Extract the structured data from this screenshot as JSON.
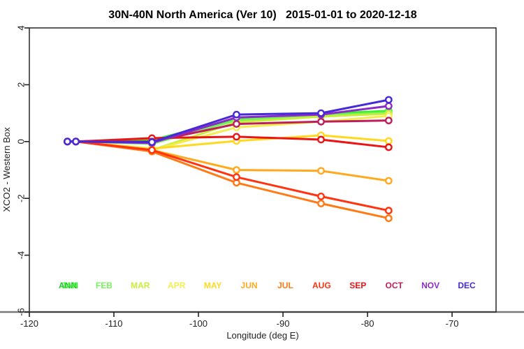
{
  "chart_data": {
    "type": "line",
    "title": "30N-40N North America (Ver 10)   2015-01-01 to 2020-12-18",
    "xlabel": "Longitude (deg E)",
    "ylabel": "XCO2 - Western Box",
    "xlim": [
      -120,
      -64.8
    ],
    "ylim": [
      -6,
      4
    ],
    "grid": false,
    "marker": "open-circle",
    "xticks": [
      {
        "v": -120,
        "label": "-120"
      },
      {
        "v": -110,
        "label": "-110"
      },
      {
        "v": -100,
        "label": "-100"
      },
      {
        "v": -90,
        "label": "-90"
      },
      {
        "v": -80,
        "label": "-80"
      },
      {
        "v": -70,
        "label": "-70"
      }
    ],
    "yticks": [
      {
        "v": -6,
        "label": "-6"
      },
      {
        "v": -4,
        "label": "-4"
      },
      {
        "v": -2,
        "label": "-2"
      },
      {
        "v": 0,
        "label": "0"
      },
      {
        "v": 2,
        "label": "2"
      },
      {
        "v": 4,
        "label": "4"
      }
    ],
    "x": [
      -115.5,
      -114.5,
      -105.5,
      -95.5,
      -85.5,
      -77.5
    ],
    "series": [
      {
        "name": "ANN",
        "color": "#1FC42F",
        "values": [
          0,
          0,
          -0.02,
          0.8,
          0.95,
          1.05
        ]
      },
      {
        "name": "JAN",
        "color": "#3BEF2B",
        "values": [
          0,
          0,
          0.05,
          0.82,
          0.98,
          1.08
        ]
      },
      {
        "name": "FEB",
        "color": "#77F25C",
        "values": [
          0,
          0,
          -0.08,
          0.75,
          0.92,
          1.02
        ]
      },
      {
        "name": "MAR",
        "color": "#C8EE3C",
        "values": [
          0,
          0,
          -0.3,
          0.68,
          0.88,
          0.98
        ]
      },
      {
        "name": "APR",
        "color": "#F2EE4E",
        "values": [
          0,
          0,
          -0.3,
          0.5,
          0.7,
          0.9
        ]
      },
      {
        "name": "MAY",
        "color": "#FFD91E",
        "values": [
          0,
          0,
          -0.25,
          0.02,
          0.22,
          0.02
        ]
      },
      {
        "name": "JUN",
        "color": "#FFA91E",
        "values": [
          0,
          0,
          -0.3,
          -1.0,
          -1.03,
          -1.38
        ]
      },
      {
        "name": "JUL",
        "color": "#FF7A14",
        "values": [
          0,
          0,
          -0.35,
          -1.45,
          -2.18,
          -2.7
        ]
      },
      {
        "name": "AUG",
        "color": "#FF330F",
        "values": [
          0,
          0,
          -0.3,
          -1.25,
          -1.93,
          -2.43
        ]
      },
      {
        "name": "SEP",
        "color": "#EA1515",
        "values": [
          0,
          0,
          0.12,
          0.17,
          0.07,
          -0.2
        ]
      },
      {
        "name": "OCT",
        "color": "#BE1E5A",
        "values": [
          0,
          0,
          0.0,
          0.62,
          0.7,
          0.74
        ]
      },
      {
        "name": "NOV",
        "color": "#8C2BC9",
        "values": [
          0,
          0,
          -0.05,
          0.85,
          0.95,
          1.25
        ]
      },
      {
        "name": "DEC",
        "color": "#4629D8",
        "values": [
          0,
          0,
          -0.02,
          0.95,
          1.0,
          1.47
        ]
      }
    ],
    "legend": {
      "position": "inside-bottom",
      "items": [
        {
          "label": "ANN",
          "color": "#1FC42F",
          "slot": 0,
          "dx": 0
        },
        {
          "label": "JAN",
          "color": "#3BEF2B",
          "slot": 0,
          "dx": 3
        },
        {
          "label": "FEB",
          "color": "#77F25C",
          "slot": 1,
          "dx": 0
        },
        {
          "label": "MAR",
          "color": "#C8EE3C",
          "slot": 2,
          "dx": 0
        },
        {
          "label": "APR",
          "color": "#F2EE4E",
          "slot": 3,
          "dx": 0
        },
        {
          "label": "MAY",
          "color": "#FFD91E",
          "slot": 4,
          "dx": 0
        },
        {
          "label": "JUN",
          "color": "#FFA91E",
          "slot": 5,
          "dx": 0
        },
        {
          "label": "JUL",
          "color": "#FF7A14",
          "slot": 6,
          "dx": 0
        },
        {
          "label": "AUG",
          "color": "#FF330F",
          "slot": 7,
          "dx": 0
        },
        {
          "label": "SEP",
          "color": "#EA1515",
          "slot": 8,
          "dx": 0
        },
        {
          "label": "OCT",
          "color": "#BE1E5A",
          "slot": 9,
          "dx": 0
        },
        {
          "label": "NOV",
          "color": "#8C2BC9",
          "slot": 10,
          "dx": 0
        },
        {
          "label": "DEC",
          "color": "#4629D8",
          "slot": 11,
          "dx": 0
        }
      ]
    },
    "axis_color": "#222222",
    "box_color": "#333333",
    "baseline_color": "#7a7a7a"
  }
}
